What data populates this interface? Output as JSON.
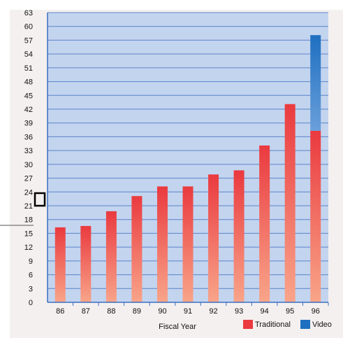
{
  "colors": {
    "plot_background": "#c3d4ef",
    "grid": "#5b84c8",
    "axis": "#3b6fc0",
    "traditional": "#ea3a3f",
    "traditional_light": "#f8a58a",
    "video": "#1e6fc0",
    "video_light": "#6a9fda",
    "text": "#111111"
  },
  "chart_data": {
    "type": "bar",
    "stacked": true,
    "categories": [
      "86",
      "87",
      "88",
      "89",
      "90",
      "91",
      "92",
      "93",
      "94",
      "95",
      "96"
    ],
    "series": [
      {
        "name": "Traditional",
        "values": [
          16.3,
          16.6,
          19.8,
          23.1,
          25.2,
          25.2,
          27.8,
          28.7,
          34.1,
          43.1,
          37.3
        ]
      },
      {
        "name": "Video",
        "values": [
          0,
          0,
          0,
          0,
          0,
          0,
          0,
          0,
          0,
          0,
          20.8
        ]
      }
    ],
    "title": "",
    "xlabel": "Fiscal Year",
    "ylabel": "",
    "ylim": [
      0,
      63
    ],
    "yticks": [
      0,
      3,
      6,
      9,
      12,
      15,
      18,
      21,
      24,
      27,
      30,
      33,
      36,
      39,
      42,
      45,
      48,
      51,
      54,
      57,
      60,
      63
    ],
    "grid": true,
    "legend": {
      "position": "bottom-right"
    }
  }
}
